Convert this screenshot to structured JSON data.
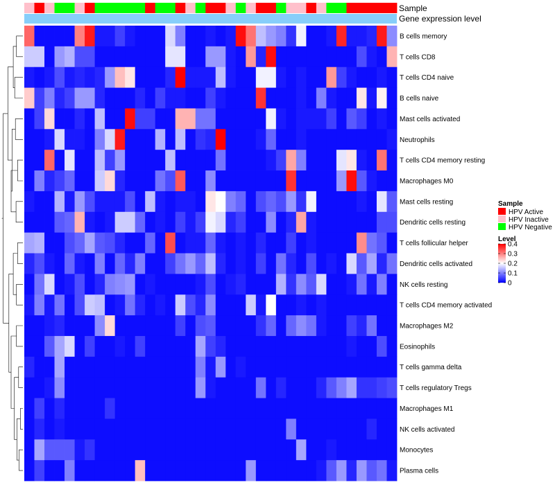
{
  "chart_data": {
    "type": "heatmap",
    "annotation_titles": [
      "Sample",
      "Gene expression level"
    ],
    "rows": [
      "B cells memory",
      "T cells CD8",
      "T cells CD4 naive",
      "B cells naive",
      "Mast cells activated",
      "Neutrophils",
      "T cells CD4 memory resting",
      "Macrophages M0",
      "Mast cells resting",
      "Dendritic cells resting",
      "T cells follicular helper",
      "Dendritic cells activated",
      "NK cells resting",
      "T cells CD4 memory activated",
      "Macrophages M2",
      "Eosinophils",
      "T cells gamma delta",
      "T cells regulatory  Tregs",
      "Macrophages M1",
      "NK cells activated",
      "Monocytes",
      "Plasma cells"
    ],
    "sample_legend": {
      "title": "Sample",
      "items": [
        {
          "label": "HPV Active",
          "color": "#ff0000"
        },
        {
          "label": "HPV Inactive",
          "color": "#ffc0cb"
        },
        {
          "label": "HPV Negative",
          "color": "#00ff00"
        }
      ]
    },
    "sample_groups": [
      "I",
      "A",
      "I",
      "N",
      "N",
      "I",
      "A",
      "N",
      "N",
      "N",
      "N",
      "N",
      "A",
      "N",
      "N",
      "A",
      "I",
      "N",
      "A",
      "A",
      "I",
      "N",
      "I",
      "A",
      "A",
      "N",
      "I",
      "I",
      "A",
      "I",
      "N",
      "N",
      "A",
      "A",
      "A",
      "A",
      "A"
    ],
    "gene_expression_color": "#87cefa",
    "level_legend": {
      "title": "Level",
      "ticks": [
        0.4,
        0.3,
        0.2,
        0.1,
        0
      ],
      "tick_labels": [
        "0.4",
        "0.3",
        "0.2",
        "0.1",
        "0"
      ],
      "range": [
        0,
        0.4
      ],
      "colors": [
        "#0000ff",
        "#ffffff",
        "#ff0000"
      ]
    },
    "values": [
      [
        0.32,
        0.01,
        0.01,
        0.01,
        0.01,
        0.3,
        0.38,
        0.02,
        0.02,
        0.05,
        0.02,
        0.01,
        0.01,
        0.01,
        0.17,
        0.1,
        0.01,
        0.01,
        0.02,
        0.01,
        0.02,
        0.39,
        0.31,
        0.15,
        0.12,
        0.1,
        0.04,
        0.19,
        0.01,
        0.01,
        0.02,
        0.37,
        0.02,
        0.02,
        0.03,
        0.38,
        0.11
      ],
      [
        0.16,
        0.16,
        0.01,
        0.12,
        0.14,
        0.06,
        0.06,
        0.01,
        0.01,
        0.01,
        0.01,
        0.01,
        0.01,
        0.01,
        0.18,
        0.18,
        0.01,
        0.01,
        0.12,
        0.12,
        0.02,
        0.01,
        0.28,
        0.03,
        0.39,
        0.01,
        0.01,
        0.01,
        0.01,
        0.01,
        0.01,
        0.01,
        0.01,
        0.06,
        0.02,
        0.01,
        0.26
      ],
      [
        0.02,
        0.01,
        0.02,
        0.06,
        0.02,
        0.03,
        0.02,
        0.03,
        0.12,
        0.25,
        0.22,
        0.01,
        0.01,
        0.01,
        0.03,
        0.41,
        0.02,
        0.02,
        0.02,
        0.15,
        0.02,
        0.01,
        0.01,
        0.19,
        0.19,
        0.02,
        0.01,
        0.02,
        0.01,
        0.01,
        0.28,
        0.05,
        0.02,
        0.01,
        0.01,
        0.02,
        0.01
      ],
      [
        0.24,
        0.05,
        0.1,
        0.03,
        0.05,
        0.12,
        0.12,
        0.03,
        0.01,
        0.01,
        0.01,
        0.03,
        0.01,
        0.05,
        0.02,
        0.02,
        0.01,
        0.01,
        0.05,
        0.02,
        0.01,
        0.01,
        0.01,
        0.36,
        0.01,
        0.01,
        0.01,
        0.02,
        0.01,
        0.1,
        0.02,
        0.01,
        0.01,
        0.22,
        0.02,
        0.21,
        0.01
      ],
      [
        0.01,
        0.05,
        0.23,
        0.01,
        0.01,
        0.03,
        0.01,
        0.15,
        0.01,
        0.01,
        0.39,
        0.05,
        0.05,
        0.01,
        0.01,
        0.26,
        0.26,
        0.09,
        0.09,
        0.01,
        0.01,
        0.01,
        0.01,
        0.01,
        0.19,
        0.02,
        0.01,
        0.02,
        0.02,
        0.02,
        0.05,
        0.01,
        0.07,
        0.05,
        0.01,
        0.02,
        0.01
      ],
      [
        0.01,
        0.01,
        0.02,
        0.17,
        0.02,
        0.02,
        0.01,
        0.1,
        0.17,
        0.38,
        0.01,
        0.01,
        0.01,
        0.14,
        0.01,
        0.15,
        0.01,
        0.04,
        0.03,
        0.4,
        0.01,
        0.01,
        0.01,
        0.02,
        0.08,
        0.01,
        0.01,
        0.02,
        0.01,
        0.01,
        0.01,
        0.01,
        0.01,
        0.01,
        0.01,
        0.01,
        0.02
      ],
      [
        0.01,
        0.01,
        0.32,
        0.01,
        0.18,
        0.01,
        0.01,
        0.15,
        0.05,
        0.12,
        0.01,
        0.01,
        0.01,
        0.01,
        0.15,
        0.01,
        0.01,
        0.01,
        0.01,
        0.09,
        0.01,
        0.01,
        0.01,
        0.01,
        0.02,
        0.05,
        0.27,
        0.1,
        0.01,
        0.01,
        0.01,
        0.18,
        0.22,
        0.02,
        0.01,
        0.31,
        0.01
      ],
      [
        0.01,
        0.1,
        0.03,
        0.05,
        0.08,
        0.01,
        0.01,
        0.16,
        0.23,
        0.03,
        0.01,
        0.01,
        0.01,
        0.09,
        0.06,
        0.33,
        0.01,
        0.01,
        0.11,
        0.01,
        0.01,
        0.01,
        0.01,
        0.01,
        0.01,
        0.01,
        0.36,
        0.01,
        0.01,
        0.01,
        0.01,
        0.12,
        0.39,
        0.07,
        0.02,
        0.01,
        0.01
      ],
      [
        0.02,
        0.01,
        0.01,
        0.14,
        0.02,
        0.12,
        0.06,
        0.02,
        0.02,
        0.02,
        0.06,
        0.01,
        0.15,
        0.02,
        0.01,
        0.02,
        0.02,
        0.01,
        0.22,
        0.2,
        0.1,
        0.08,
        0.01,
        0.06,
        0.08,
        0.06,
        0.12,
        0.04,
        0.19,
        0.01,
        0.01,
        0.01,
        0.01,
        0.02,
        0.01,
        0.18,
        0.07
      ],
      [
        0.01,
        0.01,
        0.01,
        0.07,
        0.08,
        0.26,
        0.02,
        0.01,
        0.02,
        0.16,
        0.16,
        0.08,
        0.01,
        0.02,
        0.01,
        0.05,
        0.02,
        0.05,
        0.19,
        0.17,
        0.03,
        0.05,
        0.01,
        0.01,
        0.11,
        0.01,
        0.03,
        0.27,
        0.02,
        0.01,
        0.01,
        0.01,
        0.01,
        0.01,
        0.01,
        0.06,
        0.06
      ],
      [
        0.13,
        0.14,
        0.01,
        0.01,
        0.06,
        0.08,
        0.13,
        0.07,
        0.06,
        0.03,
        0.01,
        0.01,
        0.08,
        0.01,
        0.34,
        0.01,
        0.02,
        0.02,
        0.08,
        0.02,
        0.01,
        0.02,
        0.01,
        0.03,
        0.01,
        0.01,
        0.05,
        0.01,
        0.02,
        0.01,
        0.01,
        0.01,
        0.01,
        0.29,
        0.09,
        0.07,
        0.01
      ],
      [
        0.03,
        0.06,
        0.02,
        0.01,
        0.08,
        0.02,
        0.01,
        0.1,
        0.01,
        0.08,
        0.03,
        0.1,
        0.01,
        0.01,
        0.05,
        0.09,
        0.12,
        0.08,
        0.15,
        0.03,
        0.01,
        0.02,
        0.01,
        0.05,
        0.01,
        0.09,
        0.03,
        0.01,
        0.06,
        0.01,
        0.02,
        0.01,
        0.17,
        0.07,
        0.13,
        0.03,
        0.09
      ],
      [
        0.01,
        0.09,
        0.17,
        0.01,
        0.02,
        0.06,
        0.01,
        0.03,
        0.1,
        0.11,
        0.12,
        0.01,
        0.02,
        0.01,
        0.01,
        0.01,
        0.01,
        0.02,
        0.06,
        0.01,
        0.02,
        0.03,
        0.01,
        0.01,
        0.01,
        0.14,
        0.04,
        0.11,
        0.07,
        0.17,
        0.01,
        0.01,
        0.02,
        0.09,
        0.02,
        0.1,
        0.01
      ],
      [
        0.02,
        0.1,
        0.02,
        0.09,
        0.01,
        0.06,
        0.16,
        0.15,
        0.01,
        0.02,
        0.09,
        0.03,
        0.01,
        0.02,
        0.01,
        0.16,
        0.06,
        0.03,
        0.11,
        0.01,
        0.01,
        0.01,
        0.16,
        0.02,
        0.2,
        0.01,
        0.01,
        0.02,
        0.01,
        0.02,
        0.01,
        0.01,
        0.01,
        0.01,
        0.01,
        0.01,
        0.01
      ],
      [
        0.01,
        0.01,
        0.02,
        0.03,
        0.01,
        0.01,
        0.01,
        0.11,
        0.23,
        0.01,
        0.01,
        0.01,
        0.01,
        0.01,
        0.01,
        0.05,
        0.01,
        0.06,
        0.07,
        0.01,
        0.01,
        0.01,
        0.01,
        0.04,
        0.08,
        0.01,
        0.08,
        0.11,
        0.09,
        0.02,
        0.01,
        0.01,
        0.05,
        0.03,
        0.09,
        0.01,
        0.01
      ],
      [
        0.01,
        0.01,
        0.07,
        0.13,
        0.17,
        0.01,
        0.05,
        0.01,
        0.01,
        0.02,
        0.01,
        0.05,
        0.01,
        0.01,
        0.01,
        0.01,
        0.01,
        0.13,
        0.05,
        0.03,
        0.01,
        0.01,
        0.01,
        0.01,
        0.01,
        0.01,
        0.01,
        0.01,
        0.01,
        0.01,
        0.01,
        0.01,
        0.02,
        0.01,
        0.01,
        0.06,
        0.01
      ],
      [
        0.03,
        0.01,
        0.01,
        0.13,
        0.01,
        0.01,
        0.01,
        0.01,
        0.01,
        0.01,
        0.01,
        0.01,
        0.01,
        0.01,
        0.01,
        0.01,
        0.01,
        0.1,
        0.02,
        0.12,
        0.01,
        0.02,
        0.01,
        0.01,
        0.01,
        0.01,
        0.01,
        0.01,
        0.01,
        0.01,
        0.01,
        0.01,
        0.01,
        0.01,
        0.01,
        0.01,
        0.01
      ],
      [
        0.01,
        0.01,
        0.02,
        0.11,
        0.01,
        0.01,
        0.01,
        0.01,
        0.01,
        0.01,
        0.01,
        0.01,
        0.01,
        0.01,
        0.01,
        0.01,
        0.01,
        0.12,
        0.02,
        0.01,
        0.01,
        0.01,
        0.01,
        0.09,
        0.01,
        0.03,
        0.01,
        0.01,
        0.01,
        0.03,
        0.07,
        0.1,
        0.13,
        0.04,
        0.04,
        0.05,
        0.06
      ],
      [
        0.01,
        0.05,
        0.01,
        0.03,
        0.01,
        0.01,
        0.01,
        0.01,
        0.04,
        0.01,
        0.01,
        0.01,
        0.01,
        0.01,
        0.01,
        0.01,
        0.01,
        0.01,
        0.01,
        0.01,
        0.01,
        0.01,
        0.01,
        0.01,
        0.01,
        0.01,
        0.01,
        0.01,
        0.01,
        0.01,
        0.01,
        0.01,
        0.01,
        0.01,
        0.01,
        0.01,
        0.01
      ],
      [
        0.01,
        0.03,
        0.01,
        0.02,
        0.01,
        0.01,
        0.01,
        0.01,
        0.01,
        0.01,
        0.01,
        0.01,
        0.01,
        0.01,
        0.01,
        0.01,
        0.01,
        0.01,
        0.01,
        0.01,
        0.01,
        0.01,
        0.01,
        0.01,
        0.01,
        0.01,
        0.1,
        0.01,
        0.01,
        0.01,
        0.01,
        0.01,
        0.01,
        0.01,
        0.03,
        0.01,
        0.01
      ],
      [
        0.01,
        0.13,
        0.07,
        0.07,
        0.07,
        0.02,
        0.04,
        0.01,
        0.01,
        0.01,
        0.01,
        0.01,
        0.01,
        0.01,
        0.01,
        0.01,
        0.01,
        0.01,
        0.01,
        0.01,
        0.01,
        0.01,
        0.01,
        0.01,
        0.01,
        0.01,
        0.01,
        0.13,
        0.01,
        0.01,
        0.02,
        0.01,
        0.01,
        0.01,
        0.01,
        0.01,
        0.01
      ],
      [
        0.01,
        0.05,
        0.01,
        0.01,
        0.1,
        0.01,
        0.01,
        0.01,
        0.01,
        0.01,
        0.01,
        0.25,
        0.01,
        0.01,
        0.01,
        0.01,
        0.01,
        0.01,
        0.01,
        0.01,
        0.01,
        0.01,
        0.12,
        0.01,
        0.01,
        0.01,
        0.01,
        0.01,
        0.01,
        0.02,
        0.07,
        0.12,
        0.03,
        0.12,
        0.07,
        0.09,
        0.02
      ]
    ]
  }
}
